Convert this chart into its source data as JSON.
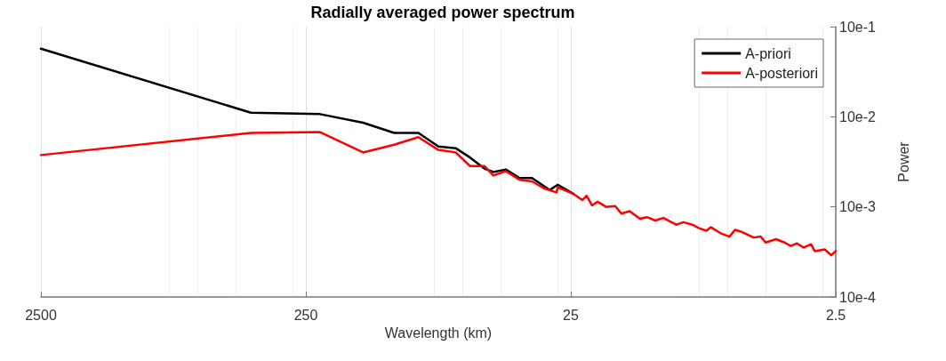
{
  "chart_data": {
    "type": "line",
    "title": "Radially averaged power spectrum",
    "xlabel": "Wavelength (km)",
    "ylabel": "Power",
    "log": "xy",
    "grid": "x",
    "legend": "top right",
    "xlim": [
      2500,
      2.5
    ],
    "xticks": [
      2500,
      250,
      25,
      2.5
    ],
    "ylim": [
      0.001,
      1
    ],
    "yticks": [
      {
        "value": 1,
        "label": "10e-1"
      },
      {
        "value": 0.1,
        "label": "10e-2"
      },
      {
        "value": 0.01,
        "label": "10e-3"
      },
      {
        "value": 0.001,
        "label": "10e-4"
      }
    ],
    "series": [
      {
        "name": "A-priori",
        "color": "#000000",
        "x": [
          2500,
          403,
          221,
          152,
          116,
          94,
          79,
          68,
          60,
          53,
          49,
          44,
          39,
          35,
          30,
          28,
          24.4
        ],
        "values": [
          0.569,
          0.111,
          0.107,
          0.0859,
          0.0662,
          0.0662,
          0.0468,
          0.0448,
          0.0353,
          0.0266,
          0.0244,
          0.026,
          0.0209,
          0.0209,
          0.0154,
          0.0176,
          0.0139
        ]
      },
      {
        "name": "A-posteriori",
        "color": "#ff0000",
        "x": [
          2500,
          403,
          221,
          152,
          116,
          94,
          79,
          68,
          60,
          53,
          49,
          44,
          39,
          35,
          31.6,
          28.3,
          28,
          24.4,
          22.6,
          21.8,
          20.8,
          19.8,
          18.4,
          17.0,
          16.1,
          15.0,
          13.7,
          12.9,
          12.0,
          11.2,
          10.0,
          9.4,
          8.7,
          8.2,
          7.7,
          7.4,
          6.8,
          6.3,
          6.0,
          5.7,
          5.1,
          4.8,
          4.6,
          4.2,
          3.9,
          3.7,
          3.5,
          3.3,
          3.1,
          3.0,
          2.75,
          2.6,
          2.5
        ],
        "values": [
          0.0376,
          0.0662,
          0.0676,
          0.0402,
          0.0489,
          0.0594,
          0.0429,
          0.0402,
          0.0284,
          0.0284,
          0.0223,
          0.0249,
          0.02,
          0.0192,
          0.0161,
          0.0145,
          0.0165,
          0.0139,
          0.0119,
          0.0133,
          0.0104,
          0.0114,
          0.01,
          0.0102,
          0.00841,
          0.00897,
          0.00738,
          0.0077,
          0.00706,
          0.00754,
          0.00634,
          0.00676,
          0.00634,
          0.00581,
          0.00544,
          0.00594,
          0.0051,
          0.00468,
          0.00556,
          0.00532,
          0.00457,
          0.00468,
          0.00402,
          0.00438,
          0.00402,
          0.00368,
          0.00393,
          0.00353,
          0.00385,
          0.00323,
          0.00337,
          0.0029,
          0.00323
        ]
      }
    ]
  }
}
